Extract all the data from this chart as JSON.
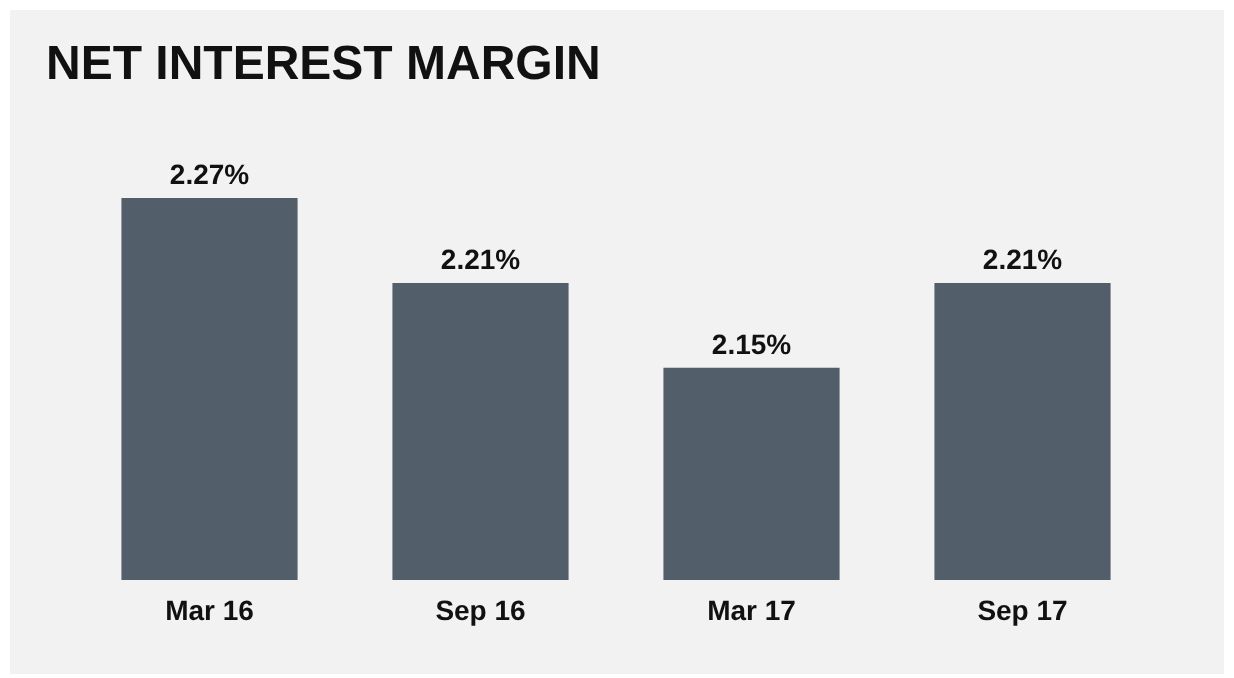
{
  "chart_data": {
    "type": "bar",
    "title": "NET INTEREST MARGIN",
    "categories": [
      "Mar 16",
      "Sep 16",
      "Mar 17",
      "Sep 17"
    ],
    "values": [
      2.27,
      2.21,
      2.15,
      2.21
    ],
    "value_labels": [
      "2.27%",
      "2.21%",
      "2.15%",
      "2.21%"
    ],
    "color": "#525e69",
    "ylim": [
      2.0,
      2.27
    ],
    "tick_labels": "x",
    "grid": false
  }
}
